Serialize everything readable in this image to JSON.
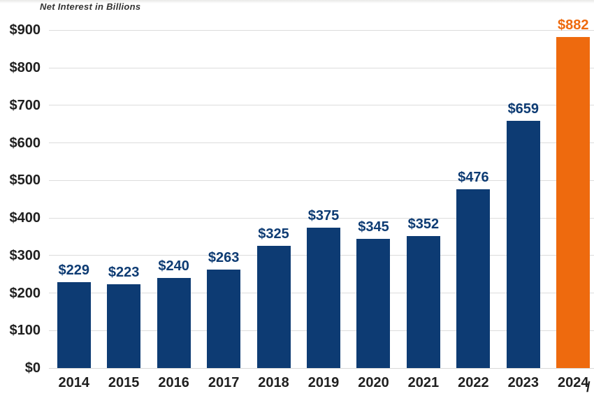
{
  "chart_data": {
    "type": "bar",
    "title": "Net Interest in Billions",
    "categories": [
      "2014",
      "2015",
      "2016",
      "2017",
      "2018",
      "2019",
      "2020",
      "2021",
      "2022",
      "2023",
      "2024"
    ],
    "values": [
      229,
      223,
      240,
      263,
      325,
      375,
      345,
      352,
      476,
      659,
      882
    ],
    "data_labels": [
      "$229",
      "$223",
      "$240",
      "$263",
      "$325",
      "$375",
      "$345",
      "$352",
      "$476",
      "$659",
      "$882"
    ],
    "xlabel": "",
    "ylabel": "",
    "ylim": [
      0,
      900
    ],
    "ytick_interval": 100,
    "ytick_labels": [
      "$0",
      "$100",
      "$200",
      "$300",
      "$400",
      "$500",
      "$600",
      "$700",
      "$800",
      "$900"
    ],
    "grid": "horizontal",
    "legend": "none",
    "highlight_index": 10,
    "footnote_mark": "/",
    "colors": {
      "bar": "#0d3b73",
      "highlight": "#ee6a0e",
      "gridline": "#dcdcdc",
      "baseline": "#d9d9d9",
      "axis_text": "#1f1f1f",
      "title_text": "#333333"
    }
  }
}
